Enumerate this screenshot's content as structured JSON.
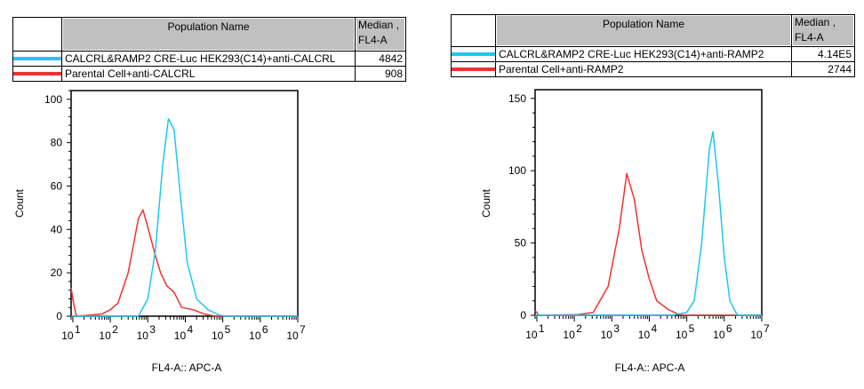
{
  "colors": {
    "series_a": "#1ec8f0",
    "series_b": "#f03232"
  },
  "chart_data": [
    {
      "type": "line",
      "title": "",
      "xlabel": "FL4-A:: APC-A",
      "ylabel": "Count",
      "x_scale": "log",
      "xlim": [
        9,
        10000000
      ],
      "ylim": [
        0,
        104
      ],
      "yticks": [
        0,
        20,
        40,
        60,
        80,
        100
      ],
      "xtick_labels": [
        {
          "base": "10",
          "exp": "1"
        },
        {
          "base": "10",
          "exp": "2"
        },
        {
          "base": "10",
          "exp": "3"
        },
        {
          "base": "10",
          "exp": "4"
        },
        {
          "base": "10",
          "exp": "5"
        },
        {
          "base": "10",
          "exp": "6"
        },
        {
          "base": "10",
          "exp": "7"
        }
      ],
      "legend": {
        "header_name": "Population Name",
        "header_median_1": "Median ,",
        "header_median_2": "FL4-A",
        "rows": [
          {
            "name": "CALCRL&RAMP2 CRE-Luc HEK293(C14)+anti-CALCRL",
            "median": "4842",
            "color": "#1ec8f0"
          },
          {
            "name": "Parental Cell+anti-CALCRL",
            "median": "908",
            "color": "#f03232"
          }
        ]
      },
      "series": [
        {
          "color": "#f03232",
          "x": [
            9,
            10,
            12,
            13,
            60,
            100,
            160,
            300,
            560,
            740,
            1000,
            1580,
            2200,
            3200,
            5000,
            8000,
            16000,
            32000,
            63000,
            10000000
          ],
          "y": [
            13,
            8,
            1,
            0,
            1,
            3,
            6,
            20,
            45,
            49,
            41,
            28,
            20,
            14,
            11,
            4,
            3,
            1,
            0,
            0
          ]
        },
        {
          "color": "#1ec8f0",
          "x": [
            9,
            560,
            1000,
            1580,
            2500,
            3550,
            5000,
            7000,
            11200,
            20000,
            40000,
            80000,
            126000,
            10000000
          ],
          "y": [
            0,
            0,
            8,
            30,
            70,
            91,
            86,
            60,
            25,
            8,
            3,
            0.5,
            0,
            0
          ]
        }
      ]
    },
    {
      "type": "line",
      "title": "",
      "xlabel": "FL4-A:: APC-A",
      "ylabel": "Count",
      "x_scale": "log",
      "xlim": [
        9,
        10000000
      ],
      "ylim": [
        0,
        156
      ],
      "yticks": [
        0,
        50,
        100,
        150
      ],
      "xtick_labels": [
        {
          "base": "10",
          "exp": "1"
        },
        {
          "base": "10",
          "exp": "2"
        },
        {
          "base": "10",
          "exp": "3"
        },
        {
          "base": "10",
          "exp": "4"
        },
        {
          "base": "10",
          "exp": "5"
        },
        {
          "base": "10",
          "exp": "6"
        },
        {
          "base": "10",
          "exp": "7"
        }
      ],
      "legend": {
        "header_name": "Population Name",
        "header_median_1": "Median ,",
        "header_median_2": "FL4-A",
        "rows": [
          {
            "name": "CALCRL&RAMP2 CRE-Luc HEK293(C14)+anti-RAMP2",
            "median": "4.14E5",
            "color": "#1ec8f0"
          },
          {
            "name": "Parental Cell+anti-RAMP2",
            "median": "2744",
            "color": "#f03232"
          }
        ]
      },
      "series": [
        {
          "color": "#f03232",
          "x": [
            9,
            10,
            11,
            125,
            320,
            800,
            1580,
            2500,
            4000,
            6300,
            10000,
            15800,
            32000,
            63000,
            100000,
            10000000
          ],
          "y": [
            3,
            2,
            0,
            0.5,
            2,
            20,
            60,
            98,
            80,
            45,
            25,
            10,
            4,
            0.5,
            0,
            0
          ]
        },
        {
          "color": "#1ec8f0",
          "x": [
            9,
            40000,
            63000,
            100000,
            158000,
            250000,
            400000,
            500000,
            700000,
            1000000,
            1410000,
            2240000,
            10000000
          ],
          "y": [
            0,
            0,
            1,
            2,
            10,
            50,
            115,
            127,
            90,
            40,
            10,
            0,
            0
          ]
        }
      ]
    }
  ]
}
